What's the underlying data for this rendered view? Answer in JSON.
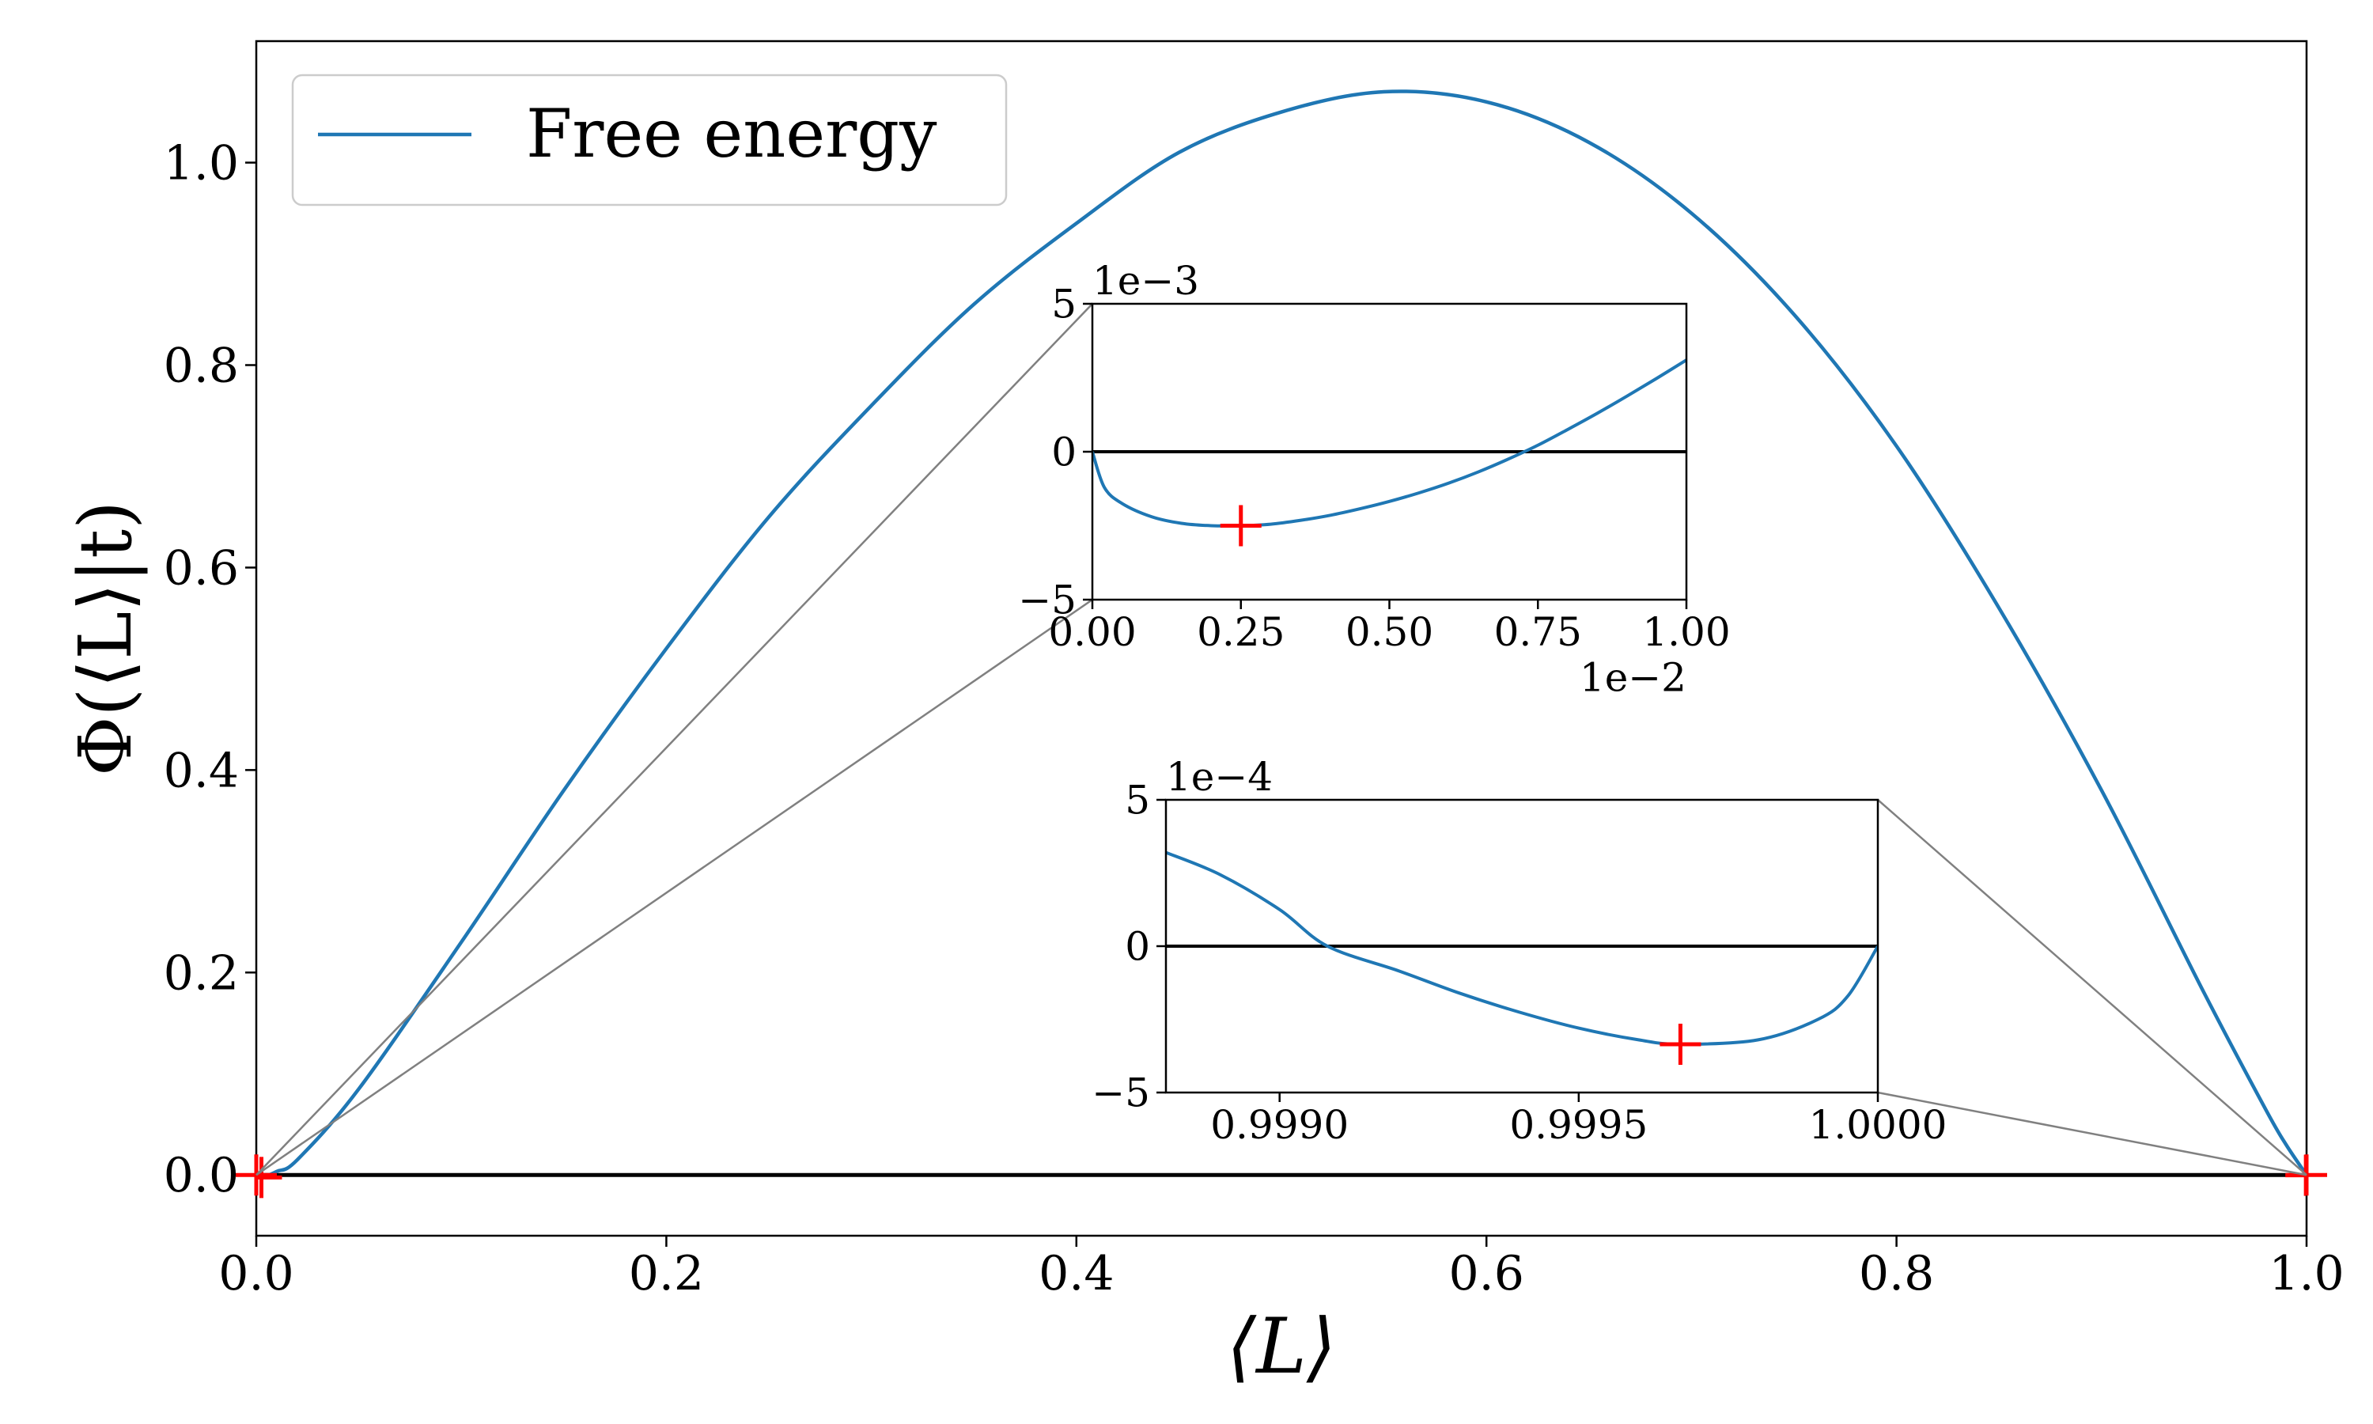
{
  "chart_data": [
    {
      "type": "line",
      "role": "main",
      "xlabel": "⟨L⟩",
      "ylabel": "Φ(⟨L⟩|t)",
      "xlim": [
        0.0,
        1.0
      ],
      "ylim": [
        -0.06,
        1.12
      ],
      "xticks": [
        0.0,
        0.2,
        0.4,
        0.6,
        0.8,
        1.0
      ],
      "xtick_labels": [
        "0.0",
        "0.2",
        "0.4",
        "0.6",
        "0.8",
        "1.0"
      ],
      "yticks": [
        0.0,
        0.2,
        0.4,
        0.6,
        0.8,
        1.0
      ],
      "ytick_labels": [
        "0.0",
        "0.2",
        "0.4",
        "0.6",
        "0.8",
        "1.0"
      ],
      "legend": {
        "placement": "top-left",
        "entries": [
          "Free energy"
        ]
      },
      "series": [
        {
          "name": "Free energy",
          "color": "#1f77b4",
          "x": [
            0.0,
            0.0025,
            0.01,
            0.02,
            0.05,
            0.1,
            0.15,
            0.2,
            0.25,
            0.3,
            0.35,
            0.4,
            0.45,
            0.5,
            0.55,
            0.6,
            0.65,
            0.7,
            0.75,
            0.8,
            0.85,
            0.9,
            0.95,
            0.98,
            0.99,
            1.0
          ],
          "y": [
            0.0,
            -0.0025,
            0.0035,
            0.015,
            0.085,
            0.23,
            0.38,
            0.52,
            0.65,
            0.76,
            0.86,
            0.94,
            1.01,
            1.05,
            1.07,
            1.06,
            1.02,
            0.95,
            0.85,
            0.72,
            0.56,
            0.38,
            0.18,
            0.065,
            0.03,
            0.0
          ]
        }
      ],
      "reference_line_y": 0.0,
      "markers": [
        {
          "x": 0.0025,
          "y": -0.0025,
          "color": "#ff0000",
          "symbol": "+"
        },
        {
          "x": 0.99967,
          "y": -0.00034,
          "color": "#ff0000",
          "symbol": "+"
        }
      ]
    },
    {
      "type": "line",
      "role": "inset-zoom-left",
      "xlim": [
        0.0,
        1.0
      ],
      "ylim": [
        -5,
        5
      ],
      "x_scale_label": "1e−2",
      "y_scale_label": "1e−3",
      "xticks": [
        0.0,
        0.25,
        0.5,
        0.75,
        1.0
      ],
      "xtick_labels": [
        "0.00",
        "0.25",
        "0.50",
        "0.75",
        "1.00"
      ],
      "yticks": [
        -5,
        0,
        5
      ],
      "ytick_labels": [
        "−5",
        "0",
        "5"
      ],
      "series": [
        {
          "name": "Free energy",
          "color": "#1f77b4",
          "x": [
            0.0,
            0.02,
            0.05,
            0.1,
            0.15,
            0.2,
            0.25,
            0.3,
            0.35,
            0.4,
            0.45,
            0.5,
            0.55,
            0.6,
            0.65,
            0.7,
            0.75,
            0.8,
            0.85,
            0.9,
            0.95,
            1.0
          ],
          "y": [
            0.0,
            -1.2,
            -1.75,
            -2.2,
            -2.42,
            -2.5,
            -2.5,
            -2.45,
            -2.32,
            -2.15,
            -1.93,
            -1.68,
            -1.39,
            -1.06,
            -0.68,
            -0.25,
            0.22,
            0.75,
            1.3,
            1.88,
            2.48,
            3.1
          ]
        }
      ],
      "reference_line_y": 0,
      "markers": [
        {
          "x": 0.25,
          "y": -2.5,
          "color": "#ff0000",
          "symbol": "+"
        }
      ]
    },
    {
      "type": "line",
      "role": "inset-zoom-right",
      "xlim": [
        0.99881,
        1.0
      ],
      "ylim": [
        -5,
        5
      ],
      "y_scale_label": "1e−4",
      "xticks": [
        0.999,
        0.9995,
        1.0
      ],
      "xtick_labels": [
        "0.9990",
        "0.9995",
        "1.0000"
      ],
      "yticks": [
        -5,
        0,
        5
      ],
      "ytick_labels": [
        "−5",
        "0",
        "5"
      ],
      "series": [
        {
          "name": "Free energy",
          "color": "#1f77b4",
          "x": [
            0.99881,
            0.9989,
            0.999,
            0.99908,
            0.9992,
            0.9993,
            0.9994,
            0.9995,
            0.9996,
            0.99967,
            0.9998,
            0.9999,
            0.99995,
            1.0
          ],
          "y": [
            3.2,
            2.45,
            1.25,
            0.0,
            -0.85,
            -1.6,
            -2.25,
            -2.8,
            -3.2,
            -3.35,
            -3.2,
            -2.5,
            -1.7,
            0.0
          ]
        }
      ],
      "reference_line_y": 0,
      "markers": [
        {
          "x": 0.99967,
          "y": -3.35,
          "color": "#ff0000",
          "symbol": "+"
        }
      ]
    }
  ]
}
